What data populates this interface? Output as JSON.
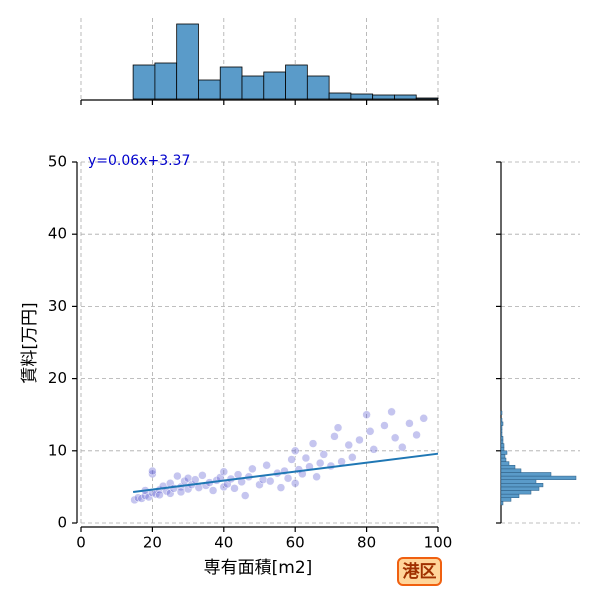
{
  "chart_data": [
    {
      "type": "scatter",
      "xlabel": "専有面積[m2]",
      "ylabel": "賃料[万円]",
      "annotation": "y=0.06x+3.37",
      "x": [
        15,
        16,
        17,
        18,
        18,
        19,
        20,
        20,
        20,
        21,
        22,
        22,
        23,
        24,
        25,
        25,
        26,
        27,
        28,
        28,
        29,
        30,
        30,
        31,
        32,
        33,
        34,
        35,
        36,
        37,
        38,
        39,
        40,
        40,
        41,
        42,
        43,
        44,
        45,
        46,
        47,
        48,
        50,
        51,
        52,
        53,
        55,
        56,
        57,
        58,
        59,
        60,
        60,
        61,
        62,
        63,
        64,
        65,
        66,
        67,
        68,
        70,
        71,
        72,
        73,
        75,
        76,
        78,
        80,
        81,
        82,
        85,
        87,
        88,
        90,
        92,
        94,
        96
      ],
      "y": [
        3.2,
        3.5,
        3.4,
        3.8,
        4.5,
        3.6,
        4.2,
        6.8,
        7.2,
        4.0,
        4.6,
        3.9,
        5.1,
        4.4,
        5.5,
        4.1,
        4.8,
        6.5,
        5.0,
        4.3,
        5.8,
        6.2,
        4.7,
        5.3,
        6.0,
        4.9,
        6.6,
        5.2,
        5.6,
        4.5,
        5.9,
        6.3,
        5.0,
        7.1,
        5.4,
        6.1,
        4.8,
        6.7,
        5.7,
        3.8,
        6.4,
        7.5,
        5.3,
        6.0,
        8.0,
        5.8,
        6.9,
        4.9,
        7.2,
        6.2,
        8.8,
        5.5,
        10.0,
        7.4,
        6.8,
        9.0,
        7.8,
        11.0,
        6.4,
        8.3,
        9.5,
        7.9,
        12.0,
        13.2,
        8.5,
        10.8,
        9.1,
        11.5,
        15.0,
        12.7,
        10.2,
        13.5,
        15.4,
        11.8,
        10.5,
        13.8,
        12.2,
        14.5
      ],
      "color": "#5a5ad0",
      "fit_line": {
        "x": [
          14.6,
          100
        ],
        "y": [
          4.3,
          9.6
        ],
        "color": "#1f77b4"
      },
      "xlim": [
        0,
        100
      ],
      "ylim": [
        0,
        50
      ],
      "xticks": [
        0,
        20,
        40,
        60,
        80,
        100
      ],
      "yticks": [
        0,
        10,
        20,
        30,
        40,
        50
      ],
      "grid": true
    },
    {
      "type": "histogram",
      "orientation": "vertical",
      "bins": [
        14.6,
        20.7,
        26.8,
        32.9,
        39.0,
        45.1,
        51.2,
        57.3,
        63.4,
        69.5,
        75.6,
        81.7,
        87.8,
        93.9,
        100
      ],
      "counts": [
        34,
        36,
        75,
        19,
        32,
        23,
        27,
        34,
        23,
        6,
        5,
        4,
        4,
        1
      ],
      "color": "#5a9bc9",
      "xlim": [
        0,
        100
      ],
      "ylim": [
        0,
        75
      ],
      "xticks": [
        0,
        20,
        40,
        60,
        80,
        100
      ],
      "grid": true
    },
    {
      "type": "histogram",
      "orientation": "horizontal",
      "bins": [
        2.5,
        3,
        3.5,
        4,
        4.5,
        5,
        5.5,
        6,
        6.5,
        7,
        7.5,
        8,
        8.5,
        9,
        9.5,
        10,
        10.5,
        11,
        11.5,
        12,
        12.5,
        13,
        13.5,
        14,
        14.5,
        15,
        15.5
      ],
      "counts": [
        2,
        10,
        18,
        30,
        38,
        42,
        35,
        75,
        50,
        20,
        14,
        8,
        5,
        4,
        6,
        3,
        3,
        2,
        2,
        1,
        1,
        1,
        2,
        1,
        0,
        1
      ],
      "color": "#5a9bc9",
      "xlim": [
        0,
        75
      ],
      "ylim": [
        0,
        50
      ],
      "yticks": [
        0,
        10,
        20,
        30,
        40,
        50
      ],
      "grid": true
    }
  ],
  "badge": "港区"
}
